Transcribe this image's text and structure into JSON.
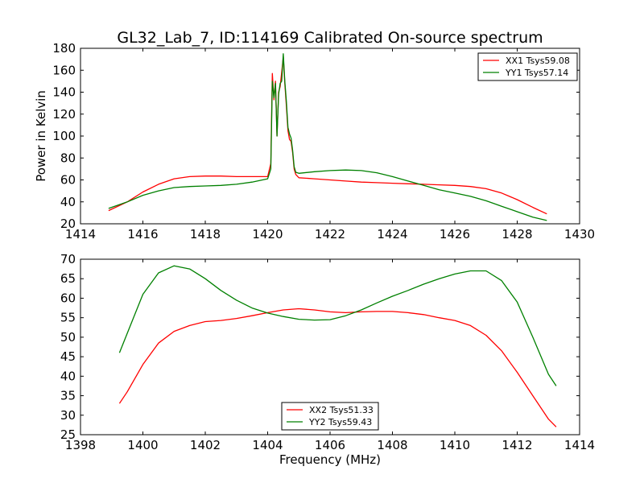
{
  "figure": {
    "title": "GL32_Lab_7, ID:114169 Calibrated On-source spectrum",
    "background": "#ffffff"
  },
  "chart_data": [
    {
      "type": "line",
      "title": "GL32_Lab_7, ID:114169 Calibrated On-source spectrum",
      "xlabel": "",
      "ylabel": "Power in Kelvin",
      "xlim": [
        1414,
        1430
      ],
      "ylim": [
        20,
        180
      ],
      "xticks": [
        1414,
        1416,
        1418,
        1420,
        1422,
        1424,
        1426,
        1428,
        1430
      ],
      "yticks": [
        20,
        40,
        60,
        80,
        100,
        120,
        140,
        160,
        180
      ],
      "legend": "top-right",
      "grid": false,
      "series": [
        {
          "name": "XX1 Tsys59.08",
          "color": "#ff0000",
          "x": [
            1414.9,
            1415.5,
            1416.0,
            1416.5,
            1417.0,
            1417.5,
            1418.0,
            1418.5,
            1419.0,
            1419.5,
            1420.0,
            1420.1,
            1420.15,
            1420.2,
            1420.25,
            1420.3,
            1420.35,
            1420.4,
            1420.45,
            1420.5,
            1420.55,
            1420.6,
            1420.65,
            1420.7,
            1420.75,
            1420.8,
            1420.85,
            1420.9,
            1421.0,
            1421.5,
            1422.0,
            1422.5,
            1423.0,
            1423.5,
            1424.0,
            1424.5,
            1425.0,
            1425.5,
            1426.0,
            1426.5,
            1427.0,
            1427.5,
            1428.0,
            1428.5,
            1428.95
          ],
          "y": [
            32,
            40,
            49,
            56,
            61,
            63,
            63.5,
            63.5,
            63,
            63,
            63,
            75,
            157,
            133,
            150,
            100,
            140,
            145,
            158,
            172,
            148,
            128,
            105,
            97,
            95,
            85,
            70,
            65,
            62,
            61,
            60,
            59,
            58,
            57.5,
            57,
            56.5,
            56,
            55.5,
            55,
            54,
            52,
            48,
            42,
            35,
            29
          ]
        },
        {
          "name": "YY1 Tsys57.14",
          "color": "#008000",
          "x": [
            1414.9,
            1415.5,
            1416.0,
            1416.5,
            1417.0,
            1417.5,
            1418.0,
            1418.5,
            1419.0,
            1419.5,
            1420.0,
            1420.1,
            1420.15,
            1420.2,
            1420.25,
            1420.3,
            1420.35,
            1420.4,
            1420.45,
            1420.5,
            1420.55,
            1420.6,
            1420.65,
            1420.7,
            1420.75,
            1420.8,
            1420.85,
            1420.9,
            1421.0,
            1421.5,
            1422.0,
            1422.5,
            1423.0,
            1423.5,
            1424.0,
            1424.5,
            1425.0,
            1425.5,
            1426.0,
            1426.5,
            1427.0,
            1427.5,
            1428.0,
            1428.5,
            1428.95
          ],
          "y": [
            34,
            40,
            46,
            50,
            53,
            54,
            54.5,
            55,
            56,
            58,
            61,
            70,
            150,
            135,
            148,
            100,
            138,
            148,
            150,
            175,
            150,
            132,
            108,
            102,
            98,
            87,
            72,
            67,
            66,
            67.5,
            68.5,
            69,
            68.5,
            66.5,
            63,
            59,
            55,
            51,
            48,
            45,
            41,
            36,
            31,
            26,
            23
          ]
        }
      ]
    },
    {
      "type": "line",
      "title": "",
      "xlabel": "Frequency (MHz)",
      "ylabel": "",
      "xlim": [
        1398,
        1414
      ],
      "ylim": [
        25,
        70
      ],
      "xticks": [
        1398,
        1400,
        1402,
        1404,
        1406,
        1408,
        1410,
        1412,
        1414
      ],
      "yticks": [
        25,
        30,
        35,
        40,
        45,
        50,
        55,
        60,
        65,
        70
      ],
      "legend": "lower-center",
      "grid": false,
      "series": [
        {
          "name": "XX2 Tsys51.33",
          "color": "#ff0000",
          "x": [
            1399.25,
            1399.5,
            1400.0,
            1400.5,
            1401.0,
            1401.5,
            1402.0,
            1402.5,
            1403.0,
            1403.5,
            1404.0,
            1404.5,
            1405.0,
            1405.5,
            1406.0,
            1406.5,
            1407.0,
            1407.5,
            1408.0,
            1408.5,
            1409.0,
            1409.5,
            1410.0,
            1410.5,
            1411.0,
            1411.5,
            1412.0,
            1412.5,
            1413.0,
            1413.25
          ],
          "y": [
            33,
            36,
            43,
            48.5,
            51.5,
            53,
            54,
            54.3,
            54.8,
            55.5,
            56.3,
            57,
            57.3,
            57,
            56.5,
            56.3,
            56.5,
            56.6,
            56.6,
            56.3,
            55.8,
            55,
            54.3,
            53,
            50.5,
            46.5,
            41,
            35,
            29,
            27
          ]
        },
        {
          "name": "YY2 Tsys59.43",
          "color": "#008000",
          "x": [
            1399.25,
            1399.5,
            1400.0,
            1400.5,
            1401.0,
            1401.5,
            1402.0,
            1402.5,
            1403.0,
            1403.5,
            1404.0,
            1404.5,
            1405.0,
            1405.5,
            1406.0,
            1406.5,
            1407.0,
            1407.5,
            1408.0,
            1408.5,
            1409.0,
            1409.5,
            1410.0,
            1410.5,
            1411.0,
            1411.5,
            1412.0,
            1412.5,
            1413.0,
            1413.25
          ],
          "y": [
            46,
            51,
            61,
            66.5,
            68.3,
            67.5,
            65,
            62,
            59.5,
            57.5,
            56.2,
            55.3,
            54.6,
            54.4,
            54.5,
            55.5,
            57,
            58.8,
            60.5,
            62,
            63.6,
            65,
            66.2,
            67,
            67,
            64.5,
            59,
            50,
            40.5,
            37.5
          ]
        }
      ]
    }
  ]
}
